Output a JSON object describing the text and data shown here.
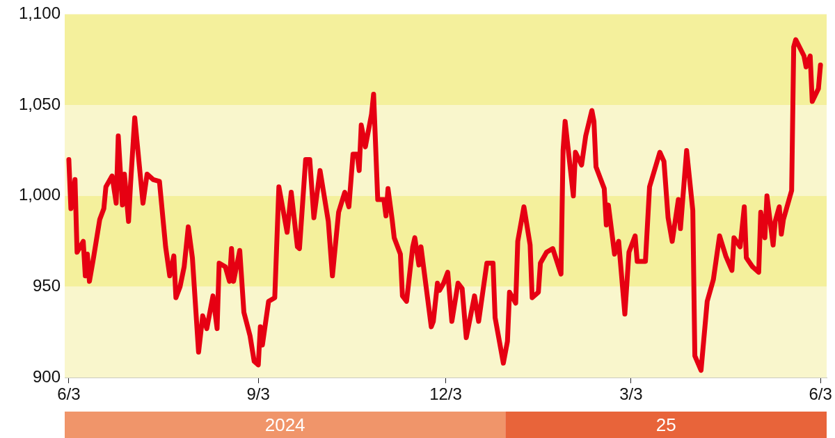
{
  "chart_data": {
    "type": "line",
    "xlim": [
      "2024-06-01",
      "2025-06-06"
    ],
    "xticks": [
      {
        "value": "2024-06-03",
        "label": "6/3"
      },
      {
        "value": "2024-09-03",
        "label": "9/3"
      },
      {
        "value": "2024-12-03",
        "label": "12/3"
      },
      {
        "value": "2025-03-03",
        "label": "3/3"
      },
      {
        "value": "2025-06-03",
        "label": "6/3"
      }
    ],
    "ylim": [
      900,
      1100
    ],
    "yticks": [
      {
        "value": 900,
        "label": "900"
      },
      {
        "value": 950,
        "label": "950"
      },
      {
        "value": 1000,
        "label": "1,000"
      },
      {
        "value": 1050,
        "label": "1,050"
      },
      {
        "value": 1100,
        "label": "1,100"
      }
    ],
    "grid": false,
    "legend": false,
    "bands": [
      {
        "axis": "y",
        "from": 1050,
        "to": 1100,
        "color": "#f4f09c"
      },
      {
        "axis": "y",
        "from": 1000,
        "to": 1050,
        "color": "#f9f6cc"
      },
      {
        "axis": "y",
        "from": 950,
        "to": 1000,
        "color": "#f4f09c"
      },
      {
        "axis": "y",
        "from": 900,
        "to": 950,
        "color": "#f9f6cc"
      }
    ],
    "annotations": [
      "2024",
      "25"
    ],
    "x": [
      "2024-06-03",
      "2024-06-04",
      "2024-06-06",
      "2024-06-07",
      "2024-06-10",
      "2024-06-11",
      "2024-06-12",
      "2024-06-13",
      "2024-06-15",
      "2024-06-18",
      "2024-06-20",
      "2024-06-21",
      "2024-06-24",
      "2024-06-26",
      "2024-06-27",
      "2024-06-29",
      "2024-06-30",
      "2024-07-02",
      "2024-07-03",
      "2024-07-05",
      "2024-07-09",
      "2024-07-11",
      "2024-07-14",
      "2024-07-17",
      "2024-07-19",
      "2024-07-20",
      "2024-07-22",
      "2024-07-24",
      "2024-07-25",
      "2024-07-27",
      "2024-07-29",
      "2024-07-31",
      "2024-08-02",
      "2024-08-05",
      "2024-08-07",
      "2024-08-09",
      "2024-08-12",
      "2024-08-14",
      "2024-08-15",
      "2024-08-18",
      "2024-08-20",
      "2024-08-21",
      "2024-08-22",
      "2024-08-25",
      "2024-08-27",
      "2024-08-30",
      "2024-09-01",
      "2024-09-03",
      "2024-09-04",
      "2024-09-05",
      "2024-09-08",
      "2024-09-11",
      "2024-09-13",
      "2024-09-17",
      "2024-09-19",
      "2024-09-22",
      "2024-09-23",
      "2024-09-26",
      "2024-09-28",
      "2024-09-30",
      "2024-10-03",
      "2024-10-07",
      "2024-10-09",
      "2024-10-12",
      "2024-10-15",
      "2024-10-17",
      "2024-10-19",
      "2024-10-21",
      "2024-10-22",
      "2024-10-23",
      "2024-10-25",
      "2024-10-28",
      "2024-10-29",
      "2024-10-31",
      "2024-11-03",
      "2024-11-04",
      "2024-11-05",
      "2024-11-07",
      "2024-11-08",
      "2024-11-11",
      "2024-11-12",
      "2024-11-14",
      "2024-11-17",
      "2024-11-18",
      "2024-11-20",
      "2024-11-21",
      "2024-11-26",
      "2024-11-27",
      "2024-11-29",
      "2024-11-30",
      "2024-12-02",
      "2024-12-04",
      "2024-12-06",
      "2024-12-09",
      "2024-12-11",
      "2024-12-13",
      "2024-12-17",
      "2024-12-19",
      "2024-12-23",
      "2024-12-26",
      "2024-12-27",
      "2024-12-31",
      "2025-01-02",
      "2025-01-03",
      "2025-01-06",
      "2025-01-07",
      "2025-01-10",
      "2025-01-13",
      "2025-01-14",
      "2025-01-17",
      "2025-01-18",
      "2025-01-21",
      "2025-01-24",
      "2025-01-28",
      "2025-01-29",
      "2025-01-30",
      "2025-02-03",
      "2025-02-04",
      "2025-02-07",
      "2025-02-09",
      "2025-02-12",
      "2025-02-13",
      "2025-02-14",
      "2025-02-18",
      "2025-02-19",
      "2025-02-20",
      "2025-02-23",
      "2025-02-25",
      "2025-02-28",
      "2025-03-02",
      "2025-03-05",
      "2025-03-06",
      "2025-03-10",
      "2025-03-12",
      "2025-03-17",
      "2025-03-19",
      "2025-03-21",
      "2025-03-23",
      "2025-03-26",
      "2025-03-27",
      "2025-03-30",
      "2025-04-02",
      "2025-04-03",
      "2025-04-06",
      "2025-04-09",
      "2025-04-12",
      "2025-04-15",
      "2025-04-18",
      "2025-04-21",
      "2025-04-22",
      "2025-04-25",
      "2025-04-27",
      "2025-04-28",
      "2025-05-01",
      "2025-05-04",
      "2025-05-05",
      "2025-05-07",
      "2025-05-08",
      "2025-05-11",
      "2025-05-12",
      "2025-05-14",
      "2025-05-15",
      "2025-05-16",
      "2025-05-20",
      "2025-05-21",
      "2025-05-22",
      "2025-05-26",
      "2025-05-27",
      "2025-05-29",
      "2025-05-30",
      "2025-06-02",
      "2025-06-03"
    ],
    "series": [
      {
        "color": "#e60012",
        "values": [
          1020,
          993,
          1009,
          969,
          975,
          956,
          968,
          953,
          966,
          987,
          993,
          1005,
          1011,
          996,
          1033,
          995,
          1012,
          986,
          1007,
          1043,
          996,
          1012,
          1009,
          1008,
          984,
          972,
          956,
          967,
          944,
          950,
          961,
          983,
          966,
          914,
          934,
          927,
          945,
          927,
          963,
          961,
          953,
          971,
          953,
          970,
          936,
          923,
          909,
          907,
          928,
          918,
          942,
          944,
          1005,
          980,
          1002,
          972,
          971,
          1020,
          1020,
          988,
          1014,
          986,
          956,
          991,
          1002,
          994,
          1023,
          1023,
          1014,
          1039,
          1027,
          1045,
          1056,
          998,
          998,
          989,
          1004,
          987,
          977,
          968,
          945,
          942,
          972,
          977,
          962,
          972,
          928,
          931,
          952,
          948,
          952,
          958,
          931,
          952,
          949,
          922,
          945,
          931,
          963,
          963,
          933,
          908,
          920,
          947,
          941,
          975,
          994,
          973,
          944,
          947,
          963,
          969,
          971,
          957,
          1025,
          1041,
          1000,
          1024,
          1017,
          1033,
          1047,
          1041,
          1016,
          1004,
          984,
          995,
          968,
          975,
          935,
          969,
          978,
          964,
          964,
          1005,
          1024,
          1019,
          988,
          975,
          998,
          982,
          1025,
          992,
          912,
          904,
          942,
          954,
          978,
          967,
          959,
          977,
          972,
          994,
          966,
          961,
          958,
          991,
          977,
          1000,
          973,
          986,
          994,
          979,
          987,
          1003,
          1082,
          1086,
          1077,
          1071,
          1077,
          1052,
          1059,
          1072
        ]
      }
    ]
  }
}
